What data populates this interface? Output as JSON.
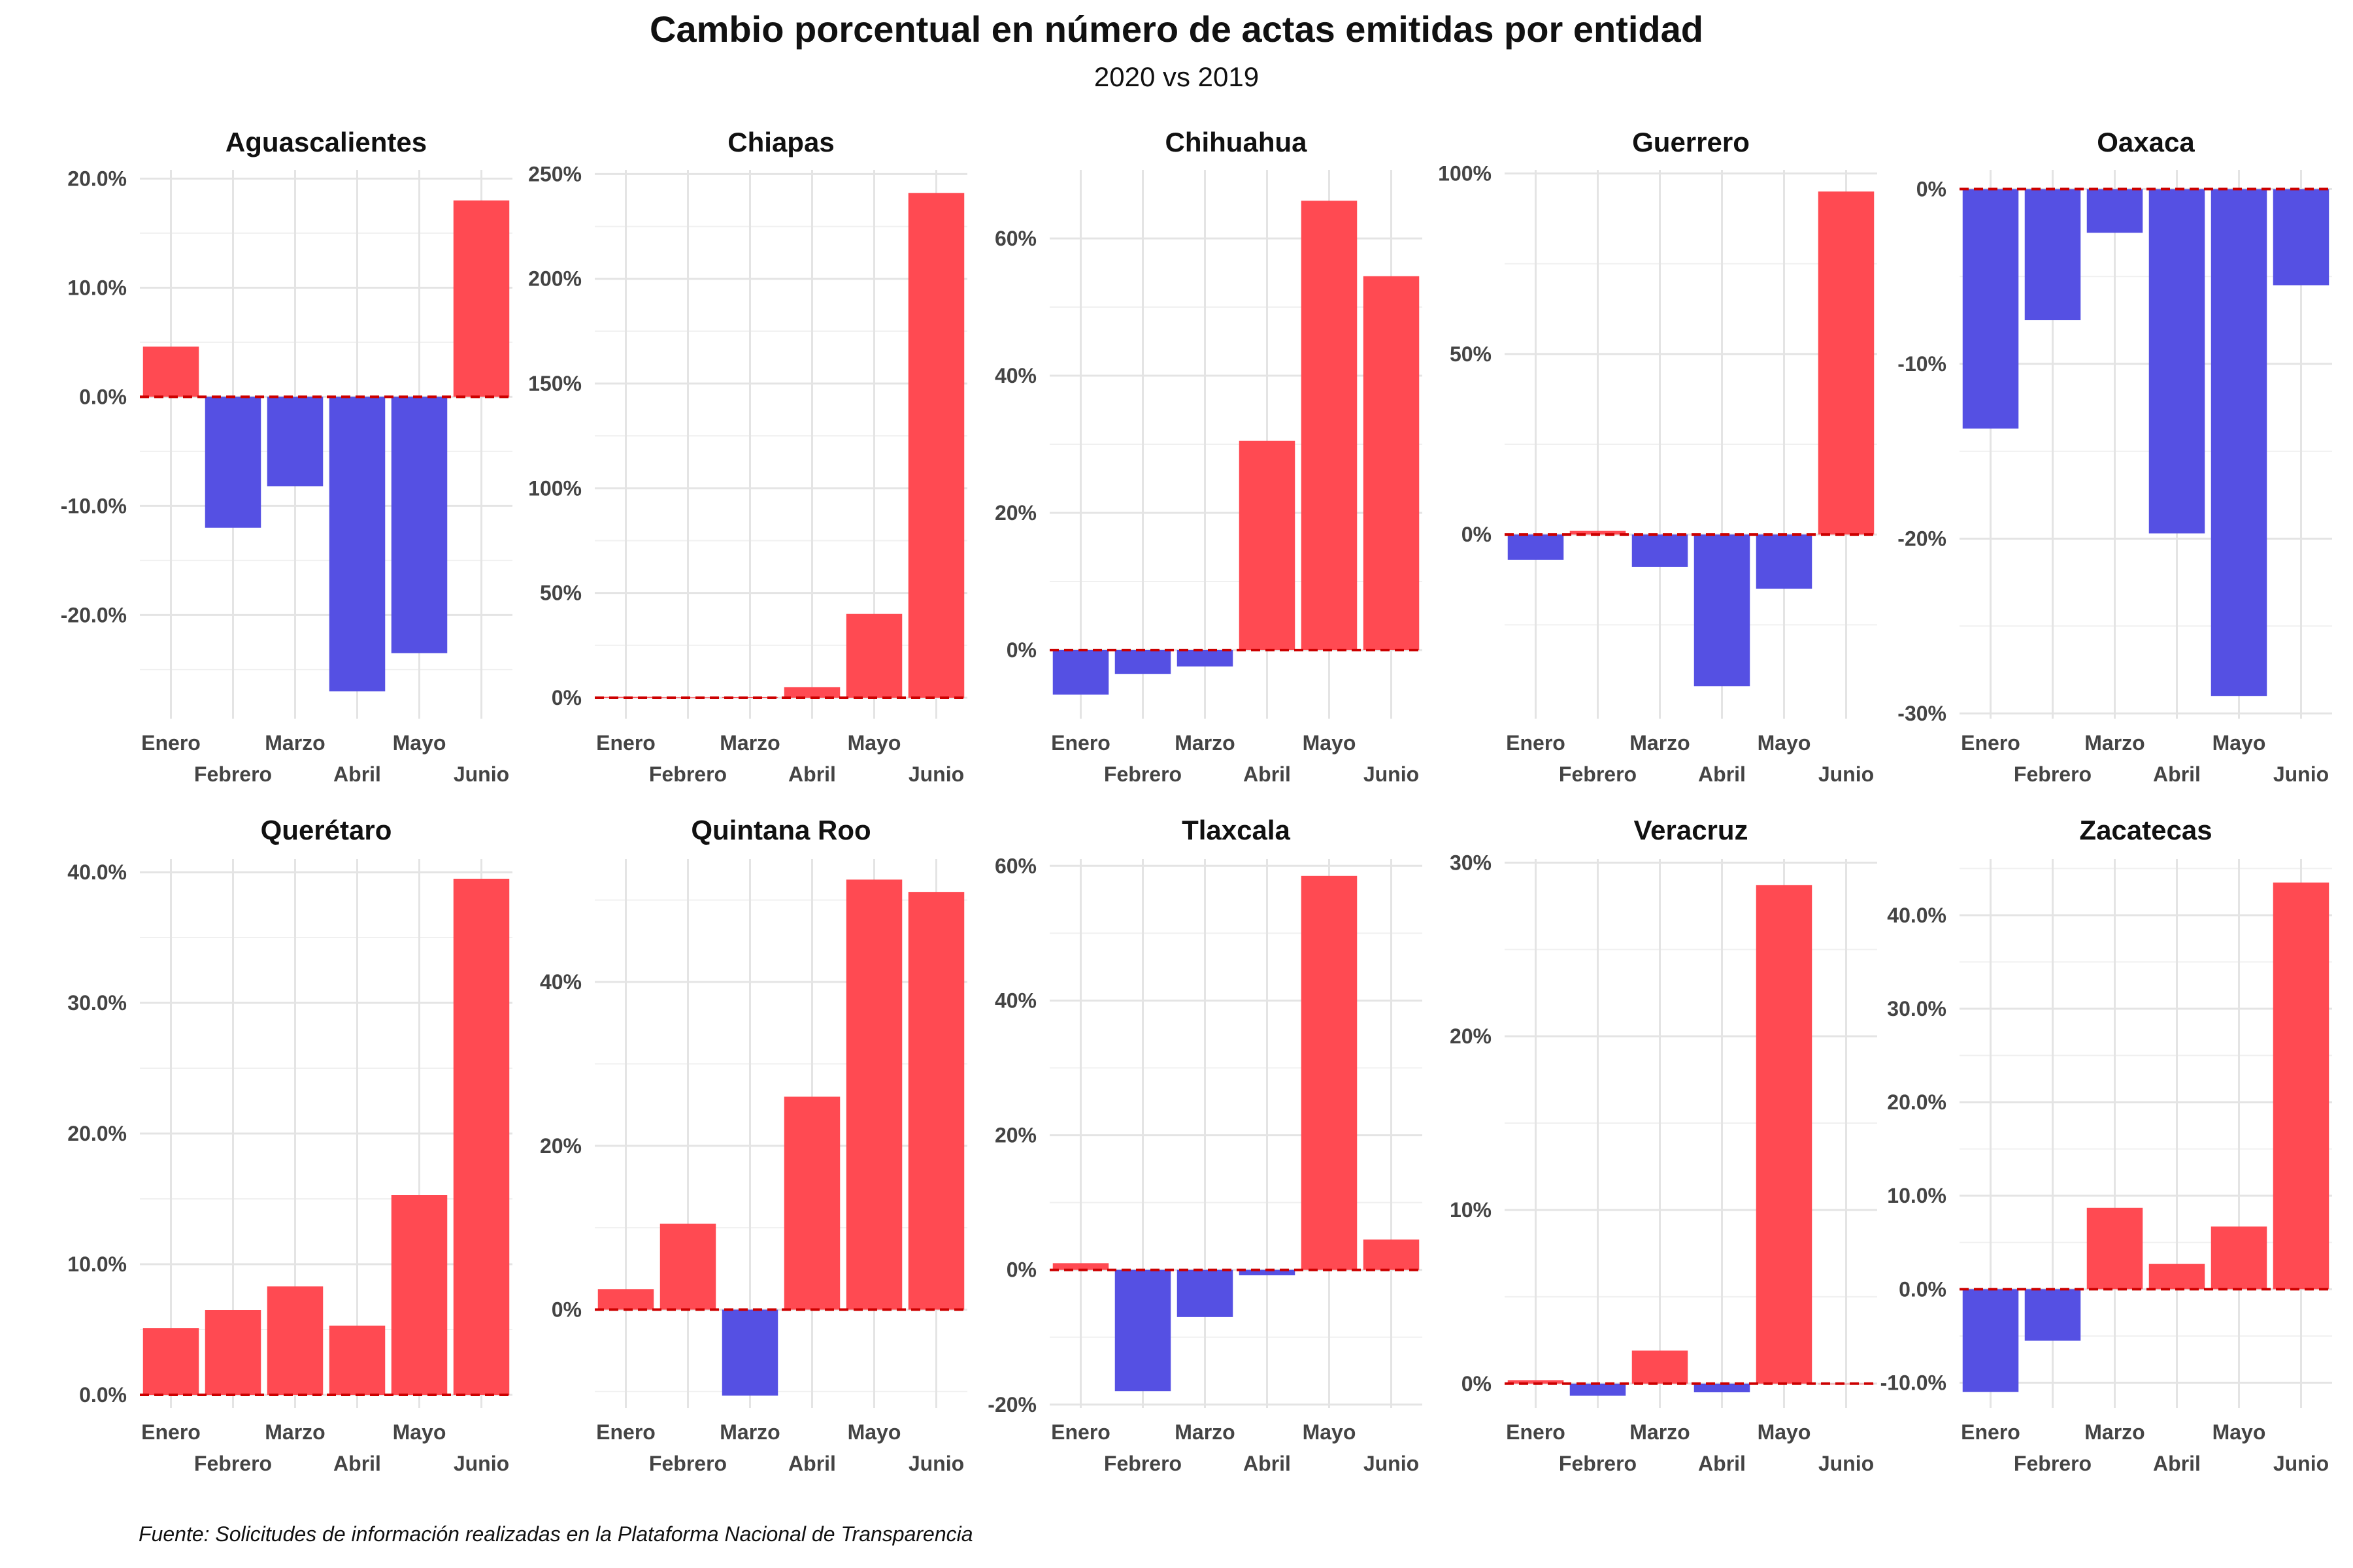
{
  "title": "Cambio porcentual en número de actas emitidas por entidad",
  "subtitle": "2020 vs 2019",
  "caption": "Fuente: Solicitudes de información realizadas en la Plataforma Nacional de Transparencia",
  "colors": {
    "positive": "#ff4a52",
    "negative": "#5550e3",
    "zero_line": "#cc0000",
    "grid": "#e4e4e4"
  },
  "chart_data": [
    {
      "type": "bar",
      "title": "Aguascalientes",
      "categories": [
        "Enero",
        "Febrero",
        "Marzo",
        "Abril",
        "Mayo",
        "Junio"
      ],
      "values": [
        4.6,
        -12.0,
        -8.2,
        -27.0,
        -23.5,
        18.0
      ],
      "ylim": [
        -29.5,
        20.8
      ],
      "yticks": [
        -20,
        -10,
        0,
        10,
        20
      ],
      "tick_labels": [
        "-20.0%",
        "-10.0%",
        "0.0%",
        "10.0%",
        "20.0%"
      ]
    },
    {
      "type": "bar",
      "title": "Chiapas",
      "categories": [
        "Enero",
        "Febrero",
        "Marzo",
        "Abril",
        "Mayo",
        "Junio"
      ],
      "values": [
        0.4,
        0.2,
        0.3,
        5.0,
        40.0,
        241.0
      ],
      "ylim": [
        -10,
        252
      ],
      "yticks": [
        0,
        50,
        100,
        150,
        200,
        250
      ],
      "tick_labels": [
        "0%",
        "50%",
        "100%",
        "150%",
        "200%",
        "250%"
      ]
    },
    {
      "type": "bar",
      "title": "Chihuahua",
      "categories": [
        "Enero",
        "Febrero",
        "Marzo",
        "Abril",
        "Mayo",
        "Junio"
      ],
      "values": [
        -6.5,
        -3.5,
        -2.4,
        30.5,
        65.5,
        54.5
      ],
      "ylim": [
        -10,
        70
      ],
      "yticks": [
        0,
        20,
        40,
        60
      ],
      "tick_labels": [
        "0%",
        "20%",
        "40%",
        "60%"
      ]
    },
    {
      "type": "bar",
      "title": "Guerrero",
      "categories": [
        "Enero",
        "Febrero",
        "Marzo",
        "Abril",
        "Mayo",
        "Junio"
      ],
      "values": [
        -7.0,
        1.0,
        -9.0,
        -42.0,
        -15.0,
        95.0
      ],
      "ylim": [
        -51,
        101
      ],
      "yticks": [
        0,
        50,
        100
      ],
      "tick_labels": [
        "0%",
        "50%",
        "100%"
      ]
    },
    {
      "type": "bar",
      "title": "Oaxaca",
      "categories": [
        "Enero",
        "Febrero",
        "Marzo",
        "Abril",
        "Mayo",
        "Junio"
      ],
      "values": [
        -13.7,
        -7.5,
        -2.5,
        -19.7,
        -29.0,
        -5.5
      ],
      "ylim": [
        -30.3,
        1.1
      ],
      "yticks": [
        -30,
        -20,
        -10,
        0
      ],
      "tick_labels": [
        "-30%",
        "-20%",
        "-10%",
        "0%"
      ]
    },
    {
      "type": "bar",
      "title": "Querétaro",
      "categories": [
        "Enero",
        "Febrero",
        "Marzo",
        "Abril",
        "Mayo",
        "Junio"
      ],
      "values": [
        5.1,
        6.5,
        8.3,
        5.3,
        15.3,
        39.5
      ],
      "ylim": [
        -1.0,
        41.0
      ],
      "yticks": [
        0,
        10,
        20,
        30,
        40
      ],
      "tick_labels": [
        "0.0%",
        "10.0%",
        "20.0%",
        "30.0%",
        "40.0%"
      ]
    },
    {
      "type": "bar",
      "title": "Quintana Roo",
      "categories": [
        "Enero",
        "Febrero",
        "Marzo",
        "Abril",
        "Mayo",
        "Junio"
      ],
      "values": [
        2.5,
        10.5,
        -10.5,
        26.0,
        52.5,
        51.0
      ],
      "ylim": [
        -12.0,
        55.0
      ],
      "yticks": [
        0,
        20,
        40
      ],
      "tick_labels": [
        "0%",
        "20%",
        "40%"
      ]
    },
    {
      "type": "bar",
      "title": "Tlaxcala",
      "categories": [
        "Enero",
        "Febrero",
        "Marzo",
        "Abril",
        "Mayo",
        "Junio"
      ],
      "values": [
        1.0,
        -18.0,
        -7.0,
        -0.8,
        58.5,
        4.5
      ],
      "ylim": [
        -20.5,
        61.0
      ],
      "yticks": [
        -20,
        0,
        20,
        40,
        60
      ],
      "tick_labels": [
        "-20%",
        "0%",
        "20%",
        "40%",
        "60%"
      ]
    },
    {
      "type": "bar",
      "title": "Veracruz",
      "categories": [
        "Enero",
        "Febrero",
        "Marzo",
        "Abril",
        "Mayo",
        "Junio"
      ],
      "values": [
        0.2,
        -0.7,
        1.9,
        -0.5,
        28.7,
        0.0
      ],
      "ylim": [
        -1.4,
        30.2
      ],
      "yticks": [
        0,
        10,
        20,
        30
      ],
      "tick_labels": [
        "0%",
        "10%",
        "20%",
        "30%"
      ]
    },
    {
      "type": "bar",
      "title": "Zacatecas",
      "categories": [
        "Enero",
        "Febrero",
        "Marzo",
        "Abril",
        "Mayo",
        "Junio"
      ],
      "values": [
        -11.0,
        -5.5,
        8.7,
        2.7,
        6.7,
        43.5
      ],
      "ylim": [
        -12.7,
        46.0
      ],
      "yticks": [
        -10,
        0,
        10,
        20,
        30,
        40
      ],
      "tick_labels": [
        "-10.0%",
        "0.0%",
        "10.0%",
        "20.0%",
        "30.0%",
        "40.0%"
      ]
    }
  ]
}
